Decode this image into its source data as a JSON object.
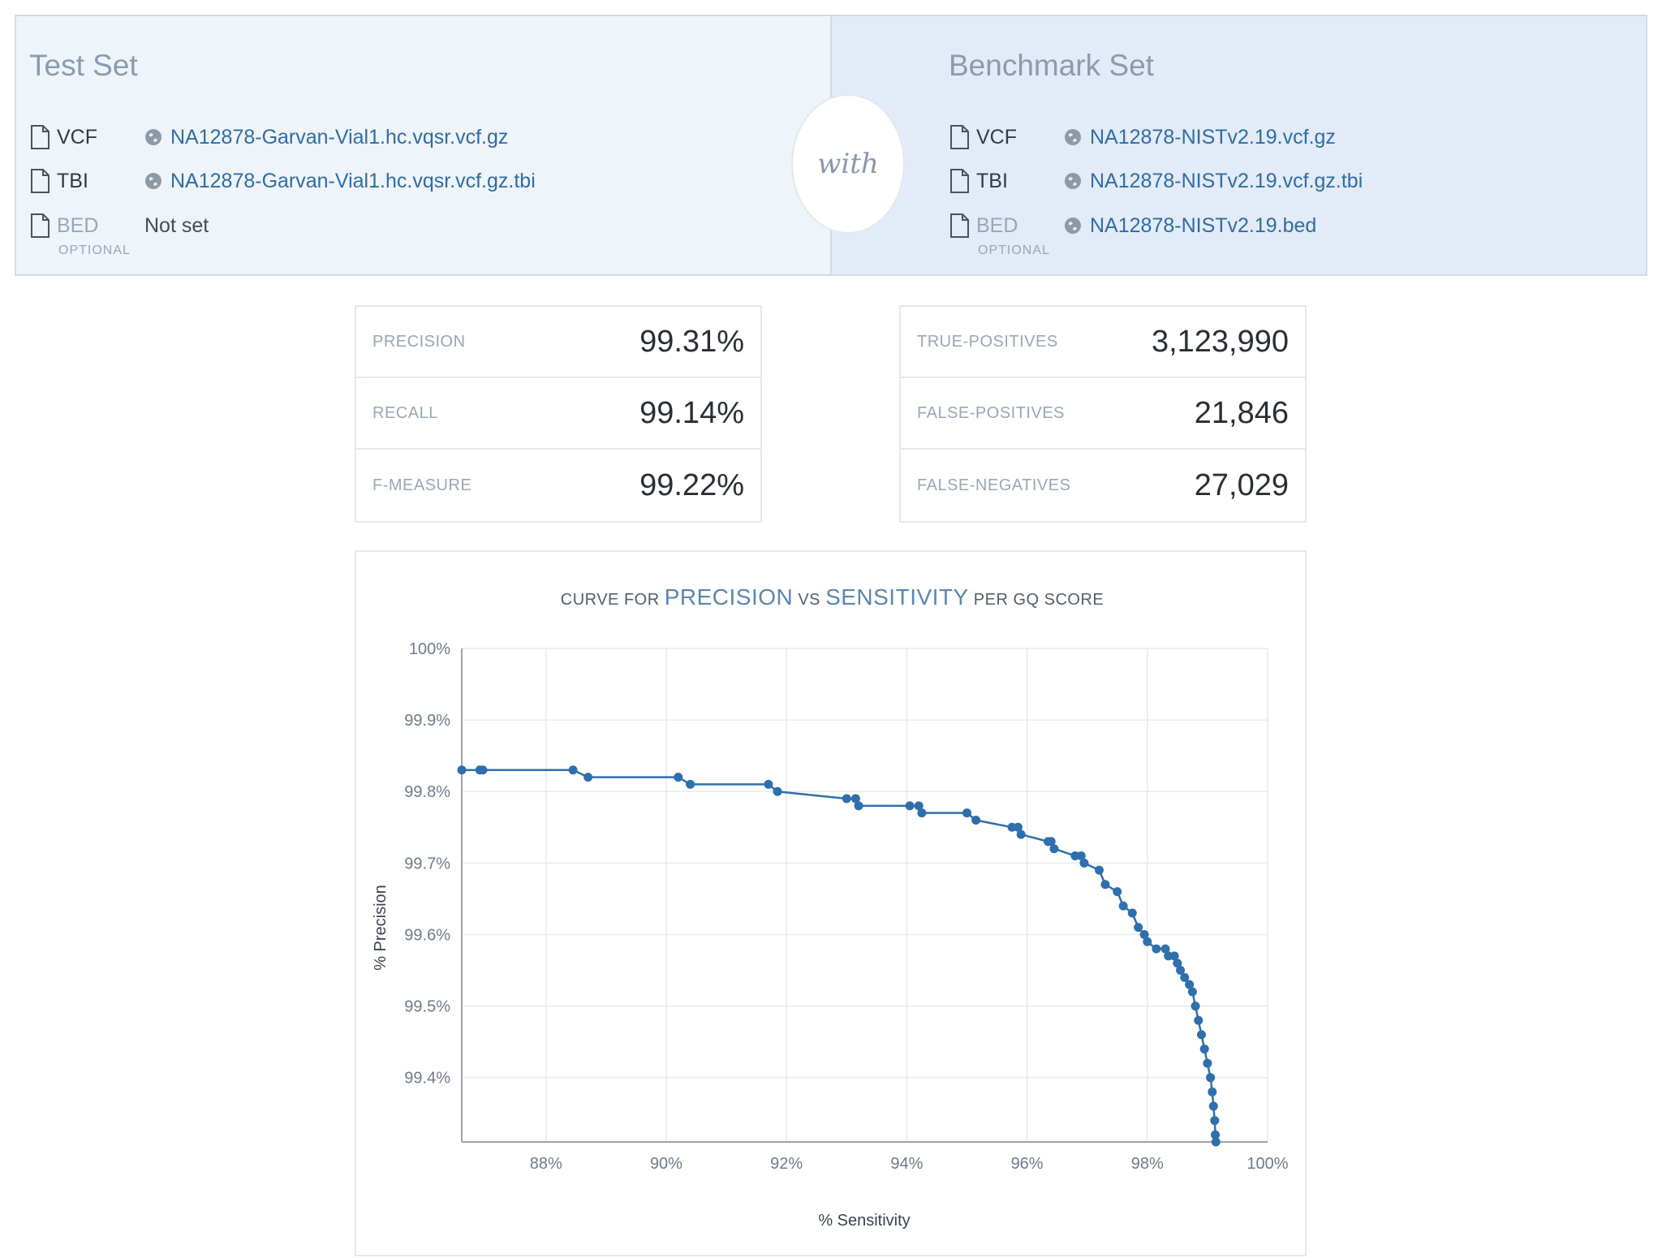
{
  "test_set": {
    "title": "Test Set",
    "vcf_label": "VCF",
    "vcf_file": "NA12878-Garvan-Vial1.hc.vqsr.vcf.gz",
    "tbi_label": "TBI",
    "tbi_file": "NA12878-Garvan-Vial1.hc.vqsr.vcf.gz.tbi",
    "bed_label": "BED",
    "bed_optional": "OPTIONAL",
    "bed_value": "Not set"
  },
  "with_label": "with",
  "benchmark_set": {
    "title": "Benchmark Set",
    "vcf_label": "VCF",
    "vcf_file": "NA12878-NISTv2.19.vcf.gz",
    "tbi_label": "TBI",
    "tbi_file": "NA12878-NISTv2.19.vcf.gz.tbi",
    "bed_label": "BED",
    "bed_optional": "OPTIONAL",
    "bed_file": "NA12878-NISTv2.19.bed"
  },
  "metrics": {
    "precision_label": "PRECISION",
    "precision_value": "99.31%",
    "recall_label": "RECALL",
    "recall_value": "99.14%",
    "fmeasure_label": "F-MEASURE",
    "fmeasure_value": "99.22%"
  },
  "counts": {
    "tp_label": "TRUE-POSITIVES",
    "tp_value": "3,123,990",
    "fp_label": "FALSE-POSITIVES",
    "fp_value": "21,846",
    "fn_label": "FALSE-NEGATIVES",
    "fn_value": "27,029"
  },
  "chart_title": {
    "part1": "CURVE FOR ",
    "part2": "PRECISION",
    "part3": " VS ",
    "part4": "SENSITIVITY",
    "part5": " PER GQ SCORE"
  },
  "colors": {
    "series": "#2e6fad",
    "link": "#2e6da4"
  },
  "chart_data": {
    "type": "line",
    "title": "CURVE FOR PRECISION VS SENSITIVITY PER GQ SCORE",
    "xlabel": "% Sensitivity",
    "ylabel": "% Precision",
    "xlim": [
      86.6,
      100
    ],
    "ylim": [
      99.31,
      100
    ],
    "x_ticks": [
      88,
      90,
      92,
      94,
      96,
      98,
      100
    ],
    "x_tick_labels": [
      "88%",
      "90%",
      "92%",
      "94%",
      "96%",
      "98%",
      "100%"
    ],
    "y_ticks": [
      99.4,
      99.5,
      99.6,
      99.7,
      99.8,
      99.9,
      100
    ],
    "y_tick_labels": [
      "99.4%",
      "99.5%",
      "99.6%",
      "99.7%",
      "99.8%",
      "99.9%",
      "100%"
    ],
    "grid": true,
    "series": [
      {
        "name": "Precision vs Sensitivity",
        "x": [
          86.6,
          86.9,
          86.95,
          88.45,
          88.7,
          90.2,
          90.4,
          91.7,
          91.85,
          93.0,
          93.15,
          93.2,
          94.05,
          94.2,
          94.25,
          95.0,
          95.15,
          95.75,
          95.85,
          95.9,
          96.35,
          96.4,
          96.45,
          96.8,
          96.9,
          96.95,
          97.2,
          97.3,
          97.5,
          97.6,
          97.75,
          97.85,
          97.95,
          98.0,
          98.15,
          98.3,
          98.35,
          98.45,
          98.5,
          98.55,
          98.62,
          98.7,
          98.75,
          98.8,
          98.85,
          98.9,
          98.95,
          99.0,
          99.05,
          99.08,
          99.1,
          99.12,
          99.13,
          99.14
        ],
        "y": [
          99.83,
          99.83,
          99.83,
          99.83,
          99.82,
          99.82,
          99.81,
          99.81,
          99.8,
          99.79,
          99.79,
          99.78,
          99.78,
          99.78,
          99.77,
          99.77,
          99.76,
          99.75,
          99.75,
          99.74,
          99.73,
          99.73,
          99.72,
          99.71,
          99.71,
          99.7,
          99.69,
          99.67,
          99.66,
          99.64,
          99.63,
          99.61,
          99.6,
          99.59,
          99.58,
          99.58,
          99.57,
          99.57,
          99.56,
          99.55,
          99.54,
          99.53,
          99.52,
          99.5,
          99.48,
          99.46,
          99.44,
          99.42,
          99.4,
          99.38,
          99.36,
          99.34,
          99.32,
          99.31
        ]
      }
    ]
  }
}
